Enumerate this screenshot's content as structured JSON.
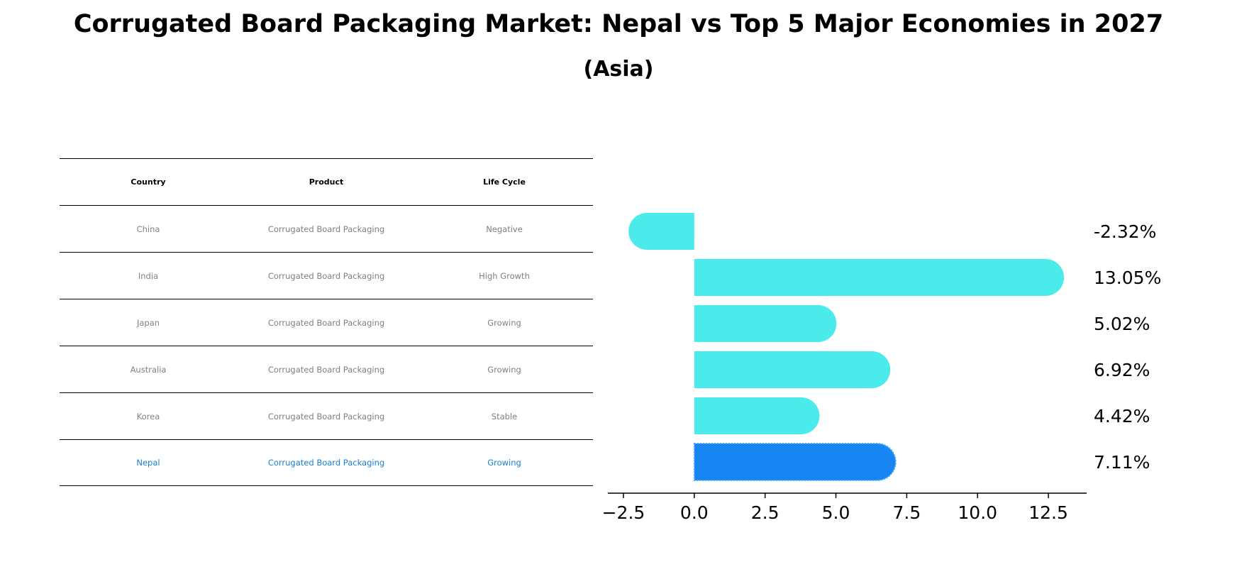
{
  "title": "Corrugated Board Packaging Market: Nepal vs Top 5 Major Economies in 2027",
  "subtitle": "(Asia)",
  "table": {
    "headers": [
      "Country",
      "Product",
      "Life Cycle"
    ],
    "rows": [
      [
        "China",
        "Corrugated Board Packaging",
        "Negative"
      ],
      [
        "India",
        "Corrugated Board Packaging",
        "High Growth"
      ],
      [
        "Japan",
        "Corrugated Board Packaging",
        "Growing"
      ],
      [
        "Australia",
        "Corrugated Board Packaging",
        "Growing"
      ],
      [
        "Korea",
        "Corrugated Board Packaging",
        "Stable"
      ],
      [
        "Nepal",
        "Corrugated Board Packaging",
        "Growing"
      ]
    ],
    "highlight_row": 5
  },
  "chart_data": {
    "type": "bar",
    "orientation": "horizontal",
    "categories": [
      "China",
      "India",
      "Japan",
      "Australia",
      "Korea",
      "Nepal"
    ],
    "values": [
      -2.32,
      13.05,
      5.02,
      6.92,
      4.42,
      7.11
    ],
    "value_labels": [
      "-2.32%",
      "13.05%",
      "5.02%",
      "6.92%",
      "4.42%",
      "7.11%"
    ],
    "xlim": [
      -3.05,
      13.85
    ],
    "xticks": [
      -2.5,
      0.0,
      2.5,
      5.0,
      7.5,
      10.0,
      12.5
    ],
    "xtick_labels": [
      "−2.5",
      "0.0",
      "2.5",
      "5.0",
      "7.5",
      "10.0",
      "12.5"
    ],
    "colors": {
      "default": "#4aebea",
      "highlight": "#1786f2"
    },
    "highlight_index": 5,
    "grid": false
  }
}
